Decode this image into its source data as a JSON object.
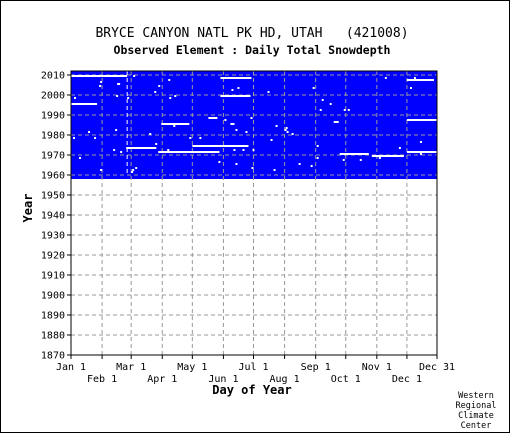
{
  "chart_data": {
    "type": "heatmap",
    "title": "BRYCE CANYON NATL PK HD, UTAH   (421008)",
    "subtitle": "Observed Element : Daily Total Snowdepth",
    "xlabel": "Day of Year",
    "ylabel": "Year",
    "xlim": [
      1,
      366
    ],
    "ylim": [
      1870,
      2012
    ],
    "grid": true,
    "x_ticks_top": [
      "Jan 1",
      "Mar 1",
      "May 1",
      "Jul 1",
      "Sep 1",
      "Nov 1",
      "Dec 31"
    ],
    "x_tick_days_top": [
      1,
      61,
      122,
      183,
      245,
      306,
      366
    ],
    "x_ticks_bottom": [
      "Feb 1",
      "Apr 1",
      "Jun 1",
      "Aug 1",
      "Oct 1",
      "Dec 1"
    ],
    "x_tick_days_bottom": [
      32,
      92,
      153,
      214,
      275,
      336
    ],
    "y_ticks": [
      1870,
      1880,
      1890,
      1900,
      1910,
      1920,
      1930,
      1940,
      1950,
      1960,
      1970,
      1980,
      1990,
      2000,
      2010
    ],
    "observed_color": "#0000ff",
    "missing_color": "#ffffff",
    "observed_blocks": [
      {
        "day_start": 1,
        "day_end": 366,
        "year_start": 1958,
        "year_end": 2011
      },
      {
        "day_start": 153,
        "day_end": 366,
        "year_start": 1960,
        "year_end": 2011
      }
    ],
    "missing_segments": [
      {
        "year": 2009,
        "day_start": 1,
        "day_end": 57
      },
      {
        "year": 2008,
        "day_start": 150,
        "day_end": 181
      },
      {
        "year": 2007,
        "day_start": 336,
        "day_end": 363
      },
      {
        "year": 2005,
        "day_start": 47,
        "day_end": 50
      },
      {
        "year": 1999,
        "day_start": 150,
        "day_end": 180
      },
      {
        "year": 1995,
        "day_start": 1,
        "day_end": 27
      },
      {
        "year": 1988,
        "day_start": 138,
        "day_end": 147
      },
      {
        "year": 1987,
        "day_start": 336,
        "day_end": 366
      },
      {
        "year": 1986,
        "day_start": 263,
        "day_end": 268
      },
      {
        "year": 1985,
        "day_start": 91,
        "day_end": 119
      },
      {
        "year": 1974,
        "day_start": 122,
        "day_end": 178
      },
      {
        "year": 1973,
        "day_start": 56,
        "day_end": 86
      },
      {
        "year": 1971,
        "day_start": 336,
        "day_end": 366
      },
      {
        "year": 1971,
        "day_start": 88,
        "day_end": 149
      },
      {
        "year": 1970,
        "day_start": 269,
        "day_end": 298
      },
      {
        "year": 1969,
        "day_start": 301,
        "day_end": 333
      }
    ],
    "missing_column_day": 57,
    "missing_column_years": [
      1960,
      2011
    ]
  },
  "credit": [
    "Western",
    "Regional",
    "Climate",
    "Center"
  ]
}
